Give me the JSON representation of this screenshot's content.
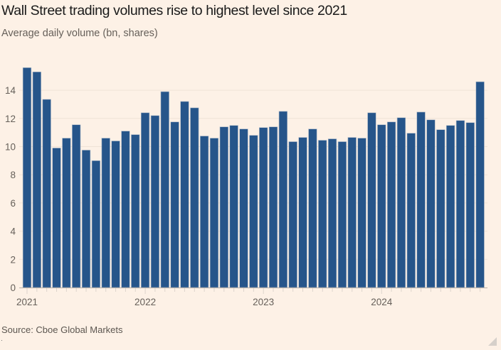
{
  "chart_data": {
    "type": "bar",
    "title": "Wall Street trading volumes rise to highest level since 2021",
    "subtitle": "Average daily volume (bn, shares)",
    "xlabel": "",
    "ylabel": "Average daily volume (bn, shares)",
    "ylim": [
      0,
      16
    ],
    "yticks": [
      0,
      2,
      4,
      6,
      8,
      10,
      12,
      14
    ],
    "grid": true,
    "x_tick_labels": [
      "2021",
      "2022",
      "2023",
      "2024"
    ],
    "categories": [
      "2021-01",
      "2021-02",
      "2021-03",
      "2021-04",
      "2021-05",
      "2021-06",
      "2021-07",
      "2021-08",
      "2021-09",
      "2021-10",
      "2021-11",
      "2021-12",
      "2022-01",
      "2022-02",
      "2022-03",
      "2022-04",
      "2022-05",
      "2022-06",
      "2022-07",
      "2022-08",
      "2022-09",
      "2022-10",
      "2022-11",
      "2022-12",
      "2023-01",
      "2023-02",
      "2023-03",
      "2023-04",
      "2023-05",
      "2023-06",
      "2023-07",
      "2023-08",
      "2023-09",
      "2023-10",
      "2023-11",
      "2023-12",
      "2024-01",
      "2024-02",
      "2024-03",
      "2024-04",
      "2024-05",
      "2024-06",
      "2024-07",
      "2024-08",
      "2024-09",
      "2024-10",
      "2024-11"
    ],
    "values": [
      15.6,
      15.3,
      13.35,
      9.9,
      10.6,
      11.55,
      9.75,
      9.0,
      10.6,
      10.4,
      11.1,
      10.85,
      12.4,
      12.2,
      13.9,
      11.75,
      13.2,
      12.75,
      10.75,
      10.6,
      11.4,
      11.5,
      11.25,
      10.8,
      11.35,
      11.4,
      12.5,
      10.35,
      10.65,
      11.25,
      10.45,
      10.55,
      10.35,
      10.65,
      10.6,
      12.4,
      11.55,
      11.75,
      12.05,
      10.95,
      12.45,
      11.9,
      11.2,
      11.5,
      11.85,
      11.7,
      14.6
    ],
    "bar_color": "#26558a"
  },
  "source": "Source: Cboe Global Markets",
  "colors": {
    "background": "#fdf1e6",
    "bar": "#26558a",
    "gridline": "#efe2d6",
    "axis": "#b8b0a8"
  }
}
